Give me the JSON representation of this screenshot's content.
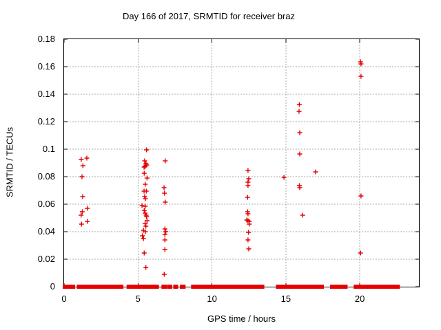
{
  "colors": {
    "marker": "#e60000",
    "grid": "#a8a8a8",
    "axis": "#000000",
    "text": "#000000",
    "background": "#ffffff"
  },
  "chart_data": {
    "type": "scatter",
    "title": "Day 166 of 2017, SRMTID for receiver braz",
    "xlabel": "GPS time / hours",
    "ylabel": "SRMTID / TECUs",
    "xlim": [
      0,
      24
    ],
    "ylim": [
      0,
      0.18
    ],
    "x_ticks": [
      0,
      5,
      10,
      15,
      20
    ],
    "x_tick_labels": [
      "0",
      "5",
      "10",
      "15",
      "20"
    ],
    "y_ticks": [
      0,
      0.02,
      0.04,
      0.06,
      0.08,
      0.1,
      0.12,
      0.14,
      0.16,
      0.18
    ],
    "y_tick_labels": [
      "0",
      "0.02",
      "0.04",
      "0.06",
      "0.08",
      "0.1",
      "0.12",
      "0.14",
      "0.16",
      "0.18"
    ],
    "grid": true,
    "legend": false,
    "marker": {
      "shape": "plus",
      "size": 7
    },
    "series": [
      {
        "name": "SRMTID",
        "points": [
          [
            1.16,
            0.0925
          ],
          [
            1.54,
            0.0935
          ],
          [
            1.27,
            0.088
          ],
          [
            1.21,
            0.08
          ],
          [
            1.26,
            0.0655
          ],
          [
            1.57,
            0.057
          ],
          [
            1.23,
            0.0545
          ],
          [
            1.15,
            0.052
          ],
          [
            1.57,
            0.0475
          ],
          [
            1.18,
            0.0455
          ],
          [
            5.58,
            0.0995
          ],
          [
            5.45,
            0.0915
          ],
          [
            5.53,
            0.0895
          ],
          [
            5.59,
            0.0885
          ],
          [
            5.48,
            0.0875
          ],
          [
            5.41,
            0.087
          ],
          [
            5.42,
            0.0825
          ],
          [
            5.61,
            0.079
          ],
          [
            5.49,
            0.0745
          ],
          [
            5.41,
            0.0695
          ],
          [
            5.56,
            0.0695
          ],
          [
            5.45,
            0.0655
          ],
          [
            5.5,
            0.064
          ],
          [
            5.27,
            0.059
          ],
          [
            5.49,
            0.0585
          ],
          [
            5.42,
            0.0555
          ],
          [
            5.48,
            0.0535
          ],
          [
            5.55,
            0.052
          ],
          [
            5.58,
            0.051
          ],
          [
            5.61,
            0.048
          ],
          [
            5.48,
            0.046
          ],
          [
            5.53,
            0.044
          ],
          [
            5.37,
            0.041
          ],
          [
            5.49,
            0.04
          ],
          [
            5.3,
            0.037
          ],
          [
            5.37,
            0.035
          ],
          [
            5.42,
            0.0245
          ],
          [
            5.53,
            0.014
          ],
          [
            6.84,
            0.0915
          ],
          [
            6.76,
            0.072
          ],
          [
            6.79,
            0.068
          ],
          [
            6.84,
            0.0615
          ],
          [
            6.82,
            0.042
          ],
          [
            6.88,
            0.04
          ],
          [
            6.82,
            0.038
          ],
          [
            6.82,
            0.034
          ],
          [
            6.82,
            0.027
          ],
          [
            6.77,
            0.009
          ],
          [
            12.44,
            0.0845
          ],
          [
            12.49,
            0.0785
          ],
          [
            12.44,
            0.076
          ],
          [
            12.44,
            0.0735
          ],
          [
            12.41,
            0.065
          ],
          [
            12.41,
            0.0545
          ],
          [
            12.44,
            0.053
          ],
          [
            12.36,
            0.0485
          ],
          [
            12.44,
            0.048
          ],
          [
            12.52,
            0.0475
          ],
          [
            12.52,
            0.0455
          ],
          [
            12.47,
            0.0395
          ],
          [
            12.44,
            0.034
          ],
          [
            12.49,
            0.0275
          ],
          [
            14.87,
            0.0795
          ],
          [
            15.91,
            0.1325
          ],
          [
            15.89,
            0.1275
          ],
          [
            15.94,
            0.112
          ],
          [
            15.94,
            0.0965
          ],
          [
            15.91,
            0.0735
          ],
          [
            15.94,
            0.072
          ],
          [
            16.14,
            0.052
          ],
          [
            17.01,
            0.0835
          ],
          [
            20.05,
            0.1635
          ],
          [
            20.08,
            0.162
          ],
          [
            20.08,
            0.153
          ],
          [
            20.08,
            0.066
          ],
          [
            20.05,
            0.0245
          ]
        ],
        "zero_segments": [
          [
            0.0,
            0.15
          ],
          [
            0.22,
            0.42
          ],
          [
            0.52,
            0.65
          ],
          [
            0.95,
            1.25
          ],
          [
            1.32,
            2.02
          ],
          [
            2.05,
            2.38
          ],
          [
            2.55,
            3.18
          ],
          [
            3.28,
            3.42
          ],
          [
            3.52,
            3.68
          ],
          [
            3.78,
            3.92
          ],
          [
            4.32,
            5.18
          ],
          [
            5.28,
            5.45
          ],
          [
            5.55,
            5.72
          ],
          [
            5.82,
            6.08
          ],
          [
            6.18,
            6.32
          ],
          [
            6.68,
            6.88
          ],
          [
            7.08,
            7.22
          ],
          [
            7.48,
            7.62
          ],
          [
            7.92,
            8.12
          ],
          [
            8.68,
            9.05
          ],
          [
            9.18,
            9.32
          ],
          [
            9.42,
            9.58
          ],
          [
            9.65,
            9.92
          ],
          [
            9.98,
            10.18
          ],
          [
            10.22,
            10.38
          ],
          [
            10.48,
            10.68
          ],
          [
            10.75,
            10.88
          ],
          [
            10.98,
            11.32
          ],
          [
            11.42,
            11.72
          ],
          [
            11.78,
            12.02
          ],
          [
            12.12,
            12.32
          ],
          [
            12.38,
            12.62
          ],
          [
            12.68,
            12.92
          ],
          [
            13.08,
            13.22
          ],
          [
            13.32,
            13.45
          ],
          [
            14.42,
            15.32
          ],
          [
            15.38,
            17.25
          ],
          [
            17.32,
            17.48
          ],
          [
            18.08,
            18.25
          ],
          [
            18.42,
            18.58
          ],
          [
            18.68,
            18.82
          ],
          [
            18.88,
            19.08
          ],
          [
            19.68,
            20.18
          ],
          [
            20.22,
            20.38
          ],
          [
            20.45,
            20.62
          ],
          [
            20.68,
            20.98
          ],
          [
            21.02,
            21.18
          ],
          [
            21.28,
            21.72
          ],
          [
            21.78,
            21.92
          ],
          [
            21.98,
            22.12
          ],
          [
            22.18,
            22.38
          ],
          [
            22.45,
            22.62
          ]
        ]
      }
    ]
  }
}
